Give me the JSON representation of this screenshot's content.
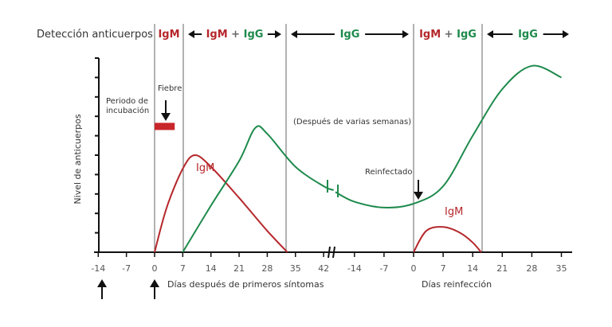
{
  "chart_data": {
    "type": "line",
    "title": "",
    "ylabel": "Nivel de anticuerpos",
    "header": {
      "label": "Detección anticuerpos",
      "segments": [
        {
          "label_parts": [
            {
              "text": "IgM",
              "color": "#b5272b"
            }
          ],
          "arrows": false
        },
        {
          "label_parts": [
            {
              "text": "IgM",
              "color": "#b5272b"
            },
            {
              "text": " + ",
              "color": "#666666"
            },
            {
              "text": "IgG",
              "color": "#1e8a4c"
            }
          ],
          "arrows": true
        },
        {
          "label_parts": [
            {
              "text": "IgG",
              "color": "#1e8a4c"
            }
          ],
          "arrows": true
        },
        {
          "label_parts": [
            {
              "text": "IgM",
              "color": "#b5272b"
            },
            {
              "text": " + ",
              "color": "#666666"
            },
            {
              "text": "IgG",
              "color": "#1e8a4c"
            }
          ],
          "arrows": false
        },
        {
          "label_parts": [
            {
              "text": "IgG",
              "color": "#1e8a4c"
            }
          ],
          "arrows": true
        }
      ]
    },
    "primary_axis": {
      "label": "Días después de primeros síntomas",
      "ticks": [
        -14,
        -7,
        0,
        7,
        14,
        21,
        28,
        35,
        42
      ]
    },
    "secondary_axis": {
      "label": "Días reinfección",
      "ticks": [
        -14,
        -7,
        0,
        7,
        14,
        21,
        28,
        35
      ]
    },
    "annotations": {
      "incubation": "Periodo de incubación",
      "fever": "Fiebre",
      "weeks": "(Después de varias semanas)",
      "reinfected": "Reinfectado",
      "igm_primary": "IgM",
      "igm_secondary": "IgM"
    },
    "series": [
      {
        "name": "IgM",
        "color": "#b5272b",
        "axis": "primary",
        "points": [
          [
            0,
            0
          ],
          [
            3,
            2.3
          ],
          [
            7,
            4.3
          ],
          [
            10,
            5.0
          ],
          [
            14,
            4.4
          ],
          [
            21,
            2.8
          ],
          [
            28,
            1.1
          ],
          [
            33,
            0
          ]
        ]
      },
      {
        "name": "IgG",
        "color": "#1e8a4c",
        "axis": "primary",
        "points": [
          [
            7,
            0
          ],
          [
            14,
            2.4
          ],
          [
            21,
            4.7
          ],
          [
            25,
            6.4
          ],
          [
            28,
            6.1
          ],
          [
            35,
            4.4
          ],
          [
            42,
            3.4
          ],
          [
            44.5,
            3.2
          ]
        ]
      },
      {
        "name": "IgG",
        "color": "#1e8a4c",
        "axis": "secondary",
        "points": [
          [
            -18.5,
            3.1
          ],
          [
            -14,
            2.6
          ],
          [
            -7,
            2.3
          ],
          [
            0,
            2.5
          ],
          [
            7,
            3.4
          ],
          [
            14,
            6.0
          ],
          [
            21,
            8.4
          ],
          [
            28,
            9.6
          ],
          [
            35,
            9.0
          ]
        ]
      },
      {
        "name": "IgM",
        "color": "#b5272b",
        "axis": "secondary",
        "points": [
          [
            0,
            0
          ],
          [
            3,
            1.1
          ],
          [
            7,
            1.3
          ],
          [
            11,
            1.0
          ],
          [
            14,
            0.5
          ],
          [
            16,
            0
          ]
        ]
      }
    ],
    "fever_bar": {
      "from": 0,
      "to": 5,
      "level": 6.5,
      "color": "#c8262b"
    },
    "ylim": [
      0,
      10
    ],
    "grid": false,
    "legend": "none"
  }
}
